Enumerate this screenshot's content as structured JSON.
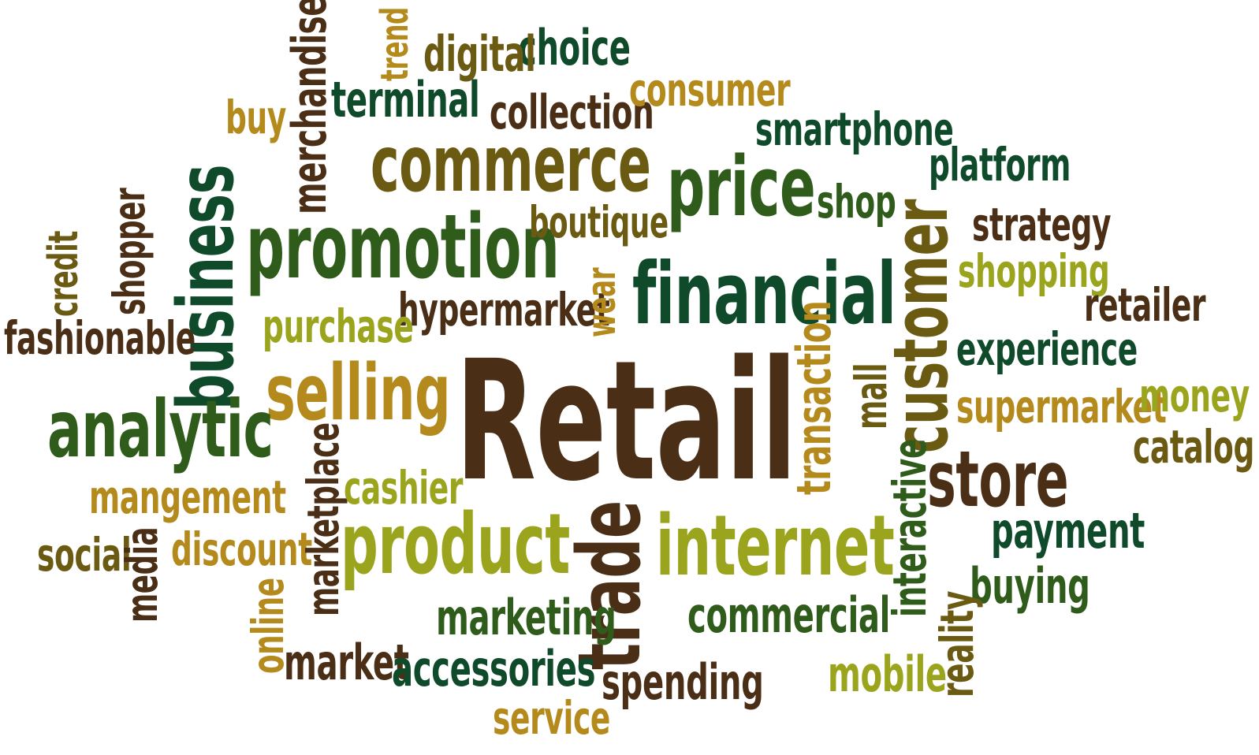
{
  "title": "Retail",
  "colors": {
    "dark_brown": "#4a2e16",
    "dark_green": "#0f4a2a",
    "olive": "#6b5a12",
    "yellow_green": "#9aa51d",
    "green": "#2f5c1a",
    "gold": "#b48a1c"
  },
  "words": [
    {
      "text": "Retail",
      "color": "#4a2e16",
      "size": 100,
      "rotated": false
    },
    {
      "text": "financial",
      "color": "#0f4a2a",
      "size": 100,
      "rotated": false
    },
    {
      "text": "promotion",
      "color": "#2f5c1a",
      "size": 90,
      "rotated": false
    },
    {
      "text": "commerce",
      "color": "#6b5a12",
      "size": 85,
      "rotated": false
    },
    {
      "text": "price",
      "color": "#2f5c1a",
      "size": 85,
      "rotated": false
    },
    {
      "text": "business",
      "color": "#0f4a2a",
      "size": 85,
      "rotated": true
    },
    {
      "text": "customer",
      "color": "#6b5a12",
      "size": 80,
      "rotated": true
    },
    {
      "text": "selling",
      "color": "#b48a1c",
      "size": 80,
      "rotated": false
    },
    {
      "text": "analytic",
      "color": "#2f5c1a",
      "size": 80,
      "rotated": false
    },
    {
      "text": "product",
      "color": "#9aa51d",
      "size": 85,
      "rotated": false
    },
    {
      "text": "internet",
      "color": "#9aa51d",
      "size": 85,
      "rotated": false
    },
    {
      "text": "trade",
      "color": "#4a2e16",
      "size": 80,
      "rotated": true
    },
    {
      "text": "store",
      "color": "#4a2e16",
      "size": 80,
      "rotated": false
    },
    {
      "text": "hypermarket",
      "color": "#4a2e16",
      "size": 60,
      "rotated": false
    },
    {
      "text": "purchase",
      "color": "#9aa51d",
      "size": 55,
      "rotated": false
    },
    {
      "text": "boutique",
      "color": "#6b5a12",
      "size": 55,
      "rotated": false
    },
    {
      "text": "collection",
      "color": "#4a2e16",
      "size": 55,
      "rotated": false
    },
    {
      "text": "consumer",
      "color": "#b48a1c",
      "size": 55,
      "rotated": false
    },
    {
      "text": "smartphone",
      "color": "#0f4a2a",
      "size": 55,
      "rotated": false
    },
    {
      "text": "platform",
      "color": "#0f4a2a",
      "size": 55,
      "rotated": false
    },
    {
      "text": "strategy",
      "color": "#4a2e16",
      "size": 55,
      "rotated": false
    },
    {
      "text": "shopping",
      "color": "#9aa51d",
      "size": 55,
      "rotated": false
    },
    {
      "text": "retailer",
      "color": "#4a2e16",
      "size": 55,
      "rotated": false
    },
    {
      "text": "experience",
      "color": "#0f4a2a",
      "size": 55,
      "rotated": false
    },
    {
      "text": "supermarket",
      "color": "#b48a1c",
      "size": 55,
      "rotated": false
    },
    {
      "text": "money",
      "color": "#9aa51d",
      "size": 55,
      "rotated": false
    },
    {
      "text": "catalog",
      "color": "#6b5a12",
      "size": 55,
      "rotated": false
    },
    {
      "text": "payment",
      "color": "#0f4a2a",
      "size": 55,
      "rotated": false
    },
    {
      "text": "buying",
      "color": "#2f5c1a",
      "size": 55,
      "rotated": false
    },
    {
      "text": "reality",
      "color": "#6b5a12",
      "size": 55,
      "rotated": true
    },
    {
      "text": "mobile",
      "color": "#9aa51d",
      "size": 55,
      "rotated": false
    },
    {
      "text": "commercial",
      "color": "#2f5c1a",
      "size": 55,
      "rotated": false
    },
    {
      "text": "spending",
      "color": "#4a2e16",
      "size": 55,
      "rotated": false
    },
    {
      "text": "interactive",
      "color": "#2f5c1a",
      "size": 55,
      "rotated": true
    },
    {
      "text": "transaction",
      "color": "#b48a1c",
      "size": 55,
      "rotated": true
    },
    {
      "text": "mall",
      "color": "#6b5a12",
      "size": 55,
      "rotated": true
    },
    {
      "text": "wear",
      "color": "#b48a1c",
      "size": 55,
      "rotated": true
    },
    {
      "text": "shop",
      "color": "#2f5c1a",
      "size": 55,
      "rotated": false
    },
    {
      "text": "choice",
      "color": "#0f4a2a",
      "size": 55,
      "rotated": false
    },
    {
      "text": "digital",
      "color": "#6b5a12",
      "size": 55,
      "rotated": false
    },
    {
      "text": "trend",
      "color": "#b48a1c",
      "size": 45,
      "rotated": true
    },
    {
      "text": "terminal",
      "color": "#0f4a2a",
      "size": 55,
      "rotated": false
    },
    {
      "text": "merchandise",
      "color": "#4a2e16",
      "size": 55,
      "rotated": true
    },
    {
      "text": "buy",
      "color": "#b48a1c",
      "size": 55,
      "rotated": false
    },
    {
      "text": "shopper",
      "color": "#4a2e16",
      "size": 55,
      "rotated": true
    },
    {
      "text": "credit",
      "color": "#6b5a12",
      "size": 55,
      "rotated": true
    },
    {
      "text": "fashionable",
      "color": "#4a2e16",
      "size": 55,
      "rotated": false
    },
    {
      "text": "mangement",
      "color": "#b48a1c",
      "size": 55,
      "rotated": false
    },
    {
      "text": "social",
      "color": "#6b5a12",
      "size": 55,
      "rotated": false
    },
    {
      "text": "media",
      "color": "#4a2e16",
      "size": 55,
      "rotated": true
    },
    {
      "text": "discount",
      "color": "#b48a1c",
      "size": 55,
      "rotated": false
    },
    {
      "text": "marketplace",
      "color": "#4a2e16",
      "size": 55,
      "rotated": true
    },
    {
      "text": "cashier",
      "color": "#9aa51d",
      "size": 55,
      "rotated": false
    },
    {
      "text": "online",
      "color": "#b48a1c",
      "size": 55,
      "rotated": true
    },
    {
      "text": "marketing",
      "color": "#2f5c1a",
      "size": 55,
      "rotated": false
    },
    {
      "text": "market",
      "color": "#4a2e16",
      "size": 55,
      "rotated": false
    },
    {
      "text": "accessories",
      "color": "#0f4a2a",
      "size": 55,
      "rotated": false
    },
    {
      "text": "service",
      "color": "#b48a1c",
      "size": 55,
      "rotated": false
    }
  ]
}
